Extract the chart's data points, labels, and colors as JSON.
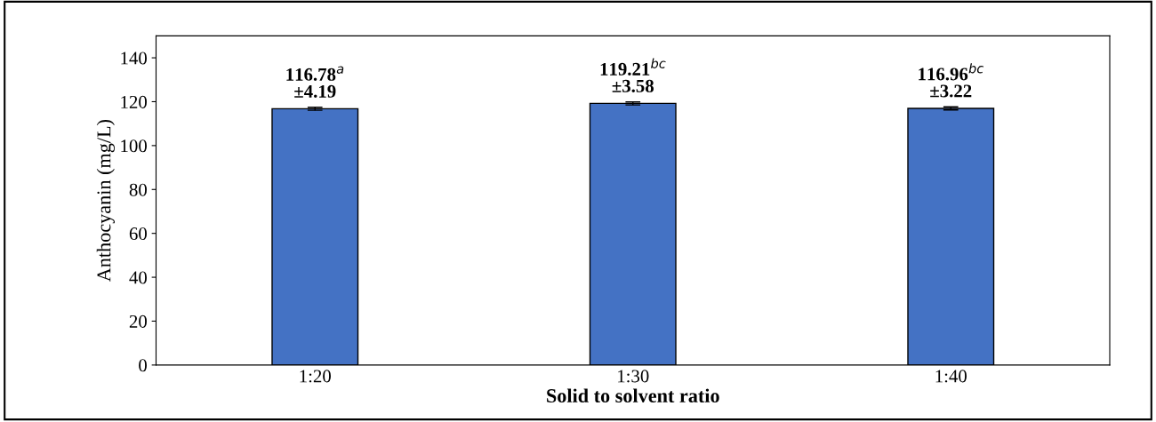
{
  "chart_data": {
    "type": "bar",
    "xlabel": "Solid to solvent ratio",
    "ylabel": "Anthocyanin (mg/L)",
    "categories": [
      "1:20",
      "1:30",
      "1:40"
    ],
    "values": [
      116.78,
      119.21,
      116.96
    ],
    "errors": [
      0.7,
      0.7,
      0.7
    ],
    "value_labels": [
      "116.78$^{a}$\n±4.19",
      "119.21$^{bc}$\n±3.58",
      "116.96$^{bc}$\n±3.22"
    ],
    "color": "#4472c4",
    "ylim": [
      0,
      150
    ],
    "yticks": [
      0,
      20,
      40,
      60,
      80,
      100,
      120,
      140
    ],
    "grid": false,
    "legend": false
  }
}
